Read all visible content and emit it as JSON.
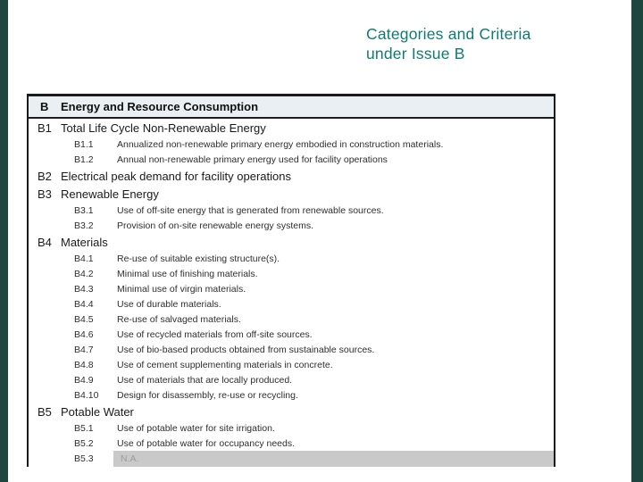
{
  "slide": {
    "title_line1": "Categories and Criteria",
    "title_line2": "under Issue B"
  },
  "table": {
    "header": {
      "code": "B",
      "label": "Energy and Resource Consumption"
    },
    "rows": [
      {
        "type": "main",
        "code": "B1",
        "label": "Total Life Cycle Non-Renewable Energy"
      },
      {
        "type": "sub",
        "code": "B1.1",
        "label": "Annualized non-renewable primary energy embodied in construction materials."
      },
      {
        "type": "sub",
        "code": "B1.2",
        "label": "Annual non-renewable primary energy used for facility operations"
      },
      {
        "type": "main",
        "code": "B2",
        "label": "Electrical peak demand for facility operations"
      },
      {
        "type": "main",
        "code": "B3",
        "label": "Renewable Energy"
      },
      {
        "type": "sub",
        "code": "B3.1",
        "label": "Use of off-site energy that is generated from renewable sources."
      },
      {
        "type": "sub",
        "code": "B3.2",
        "label": "Provision of on-site renewable energy systems."
      },
      {
        "type": "main",
        "code": "B4",
        "label": "Materials"
      },
      {
        "type": "sub",
        "code": "B4.1",
        "label": "Re-use of suitable existing structure(s)."
      },
      {
        "type": "sub",
        "code": "B4.2",
        "label": "Minimal use of finishing materials."
      },
      {
        "type": "sub",
        "code": "B4.3",
        "label": "Minimal use of virgin materials."
      },
      {
        "type": "sub",
        "code": "B4.4",
        "label": "Use of durable materials."
      },
      {
        "type": "sub",
        "code": "B4.5",
        "label": "Re-use of salvaged materials."
      },
      {
        "type": "sub",
        "code": "B4.6",
        "label": "Use of recycled materials from off-site sources."
      },
      {
        "type": "sub",
        "code": "B4.7",
        "label": "Use of bio-based products obtained from sustainable sources."
      },
      {
        "type": "sub",
        "code": "B4.8",
        "label": "Use of cement supplementing materials in concrete."
      },
      {
        "type": "sub",
        "code": "B4.9",
        "label": "Use of materials that are locally produced."
      },
      {
        "type": "sub",
        "code": "B4.10",
        "label": "Design for disassembly, re-use or recycling."
      },
      {
        "type": "main",
        "code": "B5",
        "label": "Potable Water"
      },
      {
        "type": "sub",
        "code": "B5.1",
        "label": "Use of potable water for site irrigation."
      },
      {
        "type": "sub",
        "code": "B5.2",
        "label": "Use of potable water for occupancy needs."
      },
      {
        "type": "na",
        "code": "B5.3",
        "label": "N.A."
      }
    ]
  },
  "colors": {
    "title_teal": "#117a70",
    "edge_bar": "#1f453f",
    "table_line": "#1b1b1b",
    "header_bg": "#e9eff2",
    "na_band": "#c9c9c9"
  }
}
